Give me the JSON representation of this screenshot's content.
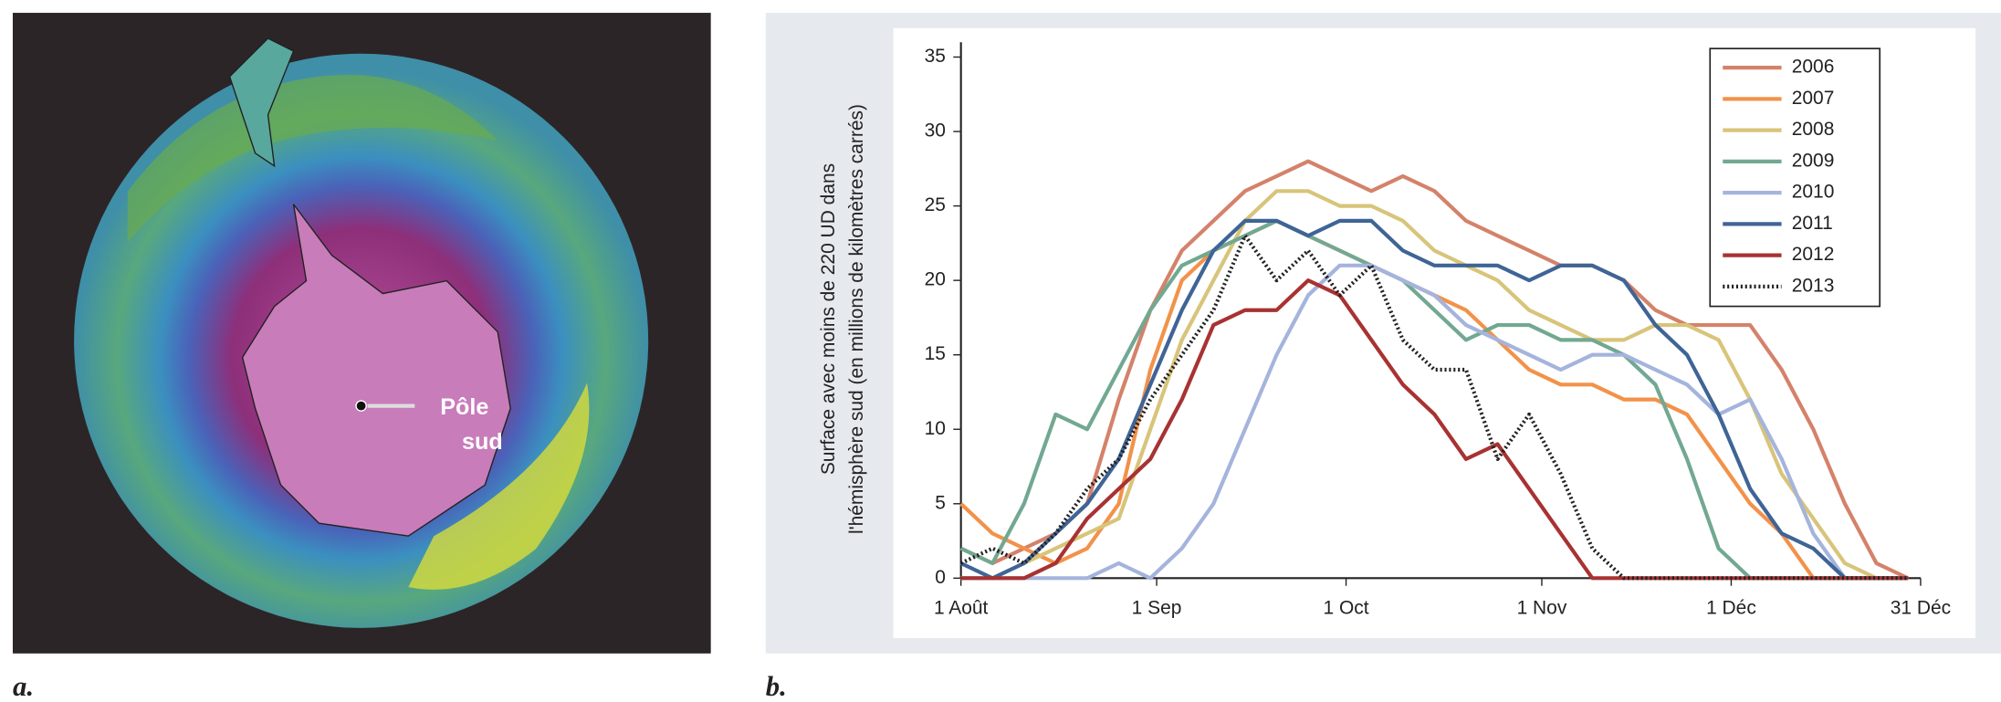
{
  "panel_a": {
    "label": "a.",
    "annotation": [
      "Pôle",
      "sud"
    ]
  },
  "panel_b": {
    "label": "b."
  },
  "chart_data": {
    "type": "line",
    "y_label": [
      "Surface avec moins de 220 UD dans",
      "l'hémisphère sud (en millions de kilomètres carrés)"
    ],
    "x": [
      0,
      5,
      10,
      15,
      20,
      25,
      30,
      35,
      40,
      45,
      50,
      55,
      60,
      65,
      70,
      75,
      80,
      85,
      90,
      95,
      100,
      105,
      110,
      115,
      120,
      125,
      130,
      135,
      140,
      145,
      150
    ],
    "xlim": [
      0,
      152
    ],
    "xticks": [
      {
        "value": 0,
        "label": "1 Août"
      },
      {
        "value": 31,
        "label": "1 Sep"
      },
      {
        "value": 61,
        "label": "1 Oct"
      },
      {
        "value": 92,
        "label": "1 Nov"
      },
      {
        "value": 122,
        "label": "1 Déc"
      },
      {
        "value": 152,
        "label": "31 Déc"
      }
    ],
    "ylim": [
      0,
      36
    ],
    "yticks": [
      0,
      5,
      10,
      15,
      20,
      25,
      30,
      35
    ],
    "grid": false,
    "legend": "top-right",
    "series": [
      {
        "name": "2006",
        "color": "#d4826a",
        "style": "solid",
        "values": [
          2,
          1,
          2,
          3,
          5,
          12,
          18,
          22,
          24,
          26,
          27,
          28,
          27,
          26,
          27,
          26,
          24,
          23,
          22,
          21,
          21,
          20,
          18,
          17,
          17,
          17,
          14,
          10,
          5,
          1,
          0
        ]
      },
      {
        "name": "2007",
        "color": "#f2924a",
        "style": "solid",
        "values": [
          5,
          3,
          2,
          1,
          2,
          5,
          14,
          20,
          22,
          23,
          24,
          23,
          22,
          21,
          20,
          19,
          18,
          16,
          14,
          13,
          13,
          12,
          12,
          11,
          8,
          5,
          3,
          0,
          0,
          0,
          0
        ]
      },
      {
        "name": "2008",
        "color": "#d8c47a",
        "style": "solid",
        "values": [
          0,
          0,
          1,
          2,
          3,
          4,
          10,
          16,
          20,
          24,
          26,
          26,
          25,
          25,
          24,
          22,
          21,
          20,
          18,
          17,
          16,
          16,
          17,
          17,
          16,
          12,
          7,
          4,
          1,
          0,
          0
        ]
      },
      {
        "name": "2009",
        "color": "#72a892",
        "style": "solid",
        "values": [
          2,
          1,
          5,
          11,
          10,
          14,
          18,
          21,
          22,
          23,
          24,
          23,
          22,
          21,
          20,
          18,
          16,
          17,
          17,
          16,
          16,
          15,
          13,
          8,
          2,
          0,
          0,
          0,
          0,
          0,
          0
        ]
      },
      {
        "name": "2010",
        "color": "#a5b4dc",
        "style": "solid",
        "values": [
          0,
          0,
          0,
          0,
          0,
          1,
          0,
          2,
          5,
          10,
          15,
          19,
          21,
          21,
          20,
          19,
          17,
          16,
          15,
          14,
          15,
          15,
          14,
          13,
          11,
          12,
          8,
          3,
          0,
          0,
          0
        ]
      },
      {
        "name": "2011",
        "color": "#3f6496",
        "style": "solid",
        "values": [
          1,
          0,
          1,
          3,
          5,
          8,
          13,
          18,
          22,
          24,
          24,
          23,
          24,
          24,
          22,
          21,
          21,
          21,
          20,
          21,
          21,
          20,
          17,
          15,
          11,
          6,
          3,
          2,
          0,
          0,
          0
        ]
      },
      {
        "name": "2012",
        "color": "#a83232",
        "style": "solid",
        "values": [
          0,
          0,
          0,
          1,
          4,
          6,
          8,
          12,
          17,
          18,
          18,
          20,
          19,
          16,
          13,
          11,
          8,
          9,
          6,
          3,
          0,
          0,
          0,
          0,
          0,
          0,
          0,
          0,
          0,
          0,
          0
        ]
      },
      {
        "name": "2013",
        "color": "#222222",
        "style": "dotted",
        "values": [
          1,
          2,
          1,
          3,
          6,
          8,
          12,
          15,
          18,
          23,
          20,
          22,
          19,
          21,
          16,
          14,
          14,
          8,
          11,
          7,
          2,
          0,
          0,
          0,
          0,
          0,
          0,
          0,
          0,
          0,
          0
        ]
      }
    ]
  }
}
